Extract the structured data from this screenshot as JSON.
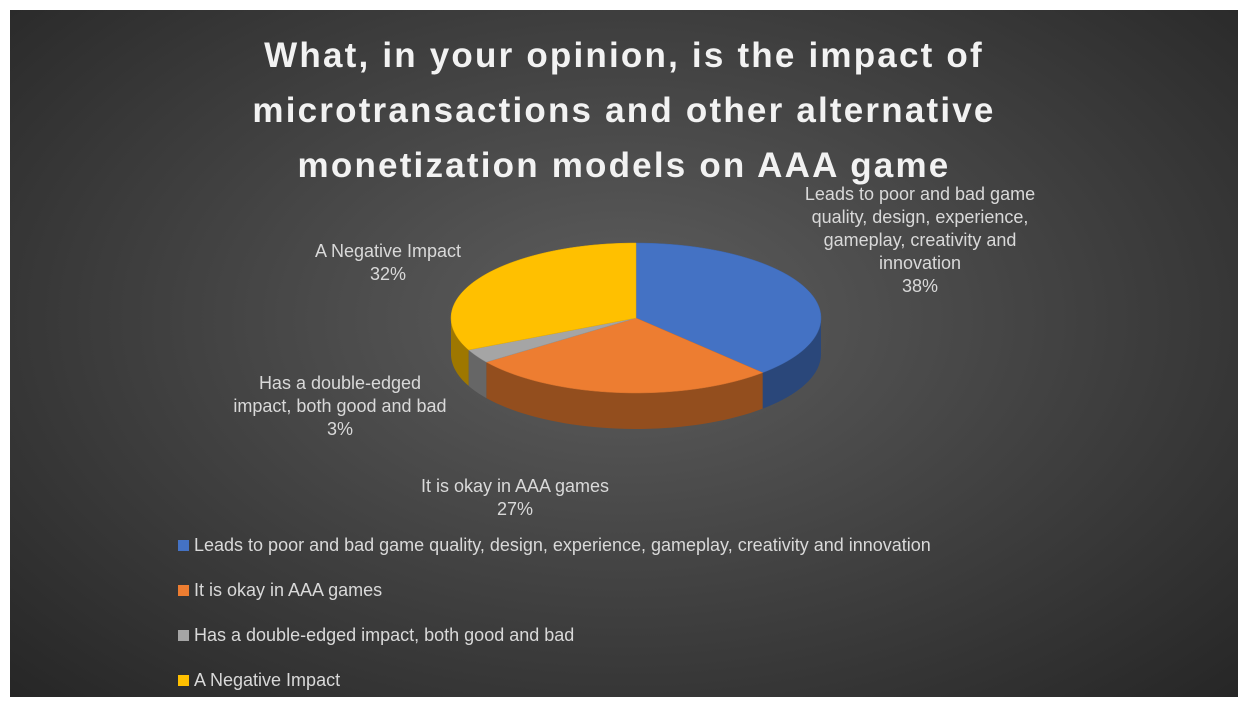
{
  "chart_data": {
    "type": "pie",
    "title": "What, in your opinion, is the impact of microtransactions and other alternative monetization models on AAA game",
    "categories": [
      "Leads to poor and bad game quality, design, experience, gameplay, creativity and innovation",
      "It is okay in AAA games",
      "Has a double-edged impact, both good and bad",
      "A Negative Impact"
    ],
    "values": [
      38,
      27,
      3,
      32
    ],
    "value_labels": [
      "38%",
      "27%",
      "3%",
      "32%"
    ],
    "colors": [
      "#4472c4",
      "#ed7d31",
      "#a5a5a5",
      "#ffc000"
    ],
    "legend": "bottom"
  }
}
